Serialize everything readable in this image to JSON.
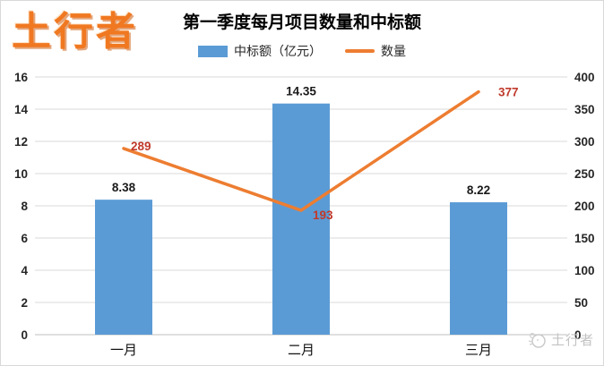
{
  "brand": {
    "logo_text": "土行者",
    "logo_color": "#F07821"
  },
  "watermark": {
    "text": "土行者"
  },
  "chart_data": {
    "type": "bar+line",
    "title": "第一季度每月项目数量和中标额",
    "categories": [
      "一月",
      "二月",
      "三月"
    ],
    "series": [
      {
        "name": "中标额（亿元）",
        "type": "bar",
        "axis": "left",
        "values": [
          8.38,
          14.35,
          8.22
        ],
        "color": "#5B9BD5",
        "label_color": "#1a1a1a"
      },
      {
        "name": "数量",
        "type": "line",
        "axis": "right",
        "values": [
          289,
          193,
          377
        ],
        "color": "#ED7D31",
        "label_color": "#C0392B"
      }
    ],
    "axes": {
      "left": {
        "min": 0,
        "max": 16,
        "ticks": [
          0,
          2,
          4,
          6,
          8,
          10,
          12,
          14,
          16
        ]
      },
      "right": {
        "min": 0,
        "max": 400,
        "ticks": [
          0,
          50,
          100,
          150,
          200,
          250,
          300,
          350,
          400
        ]
      }
    },
    "grid": true,
    "gridline_color": "#d9d9d9",
    "axis_line_color": "#bfbfbf",
    "tick_label_color": "#262626",
    "legend_position": "top"
  }
}
